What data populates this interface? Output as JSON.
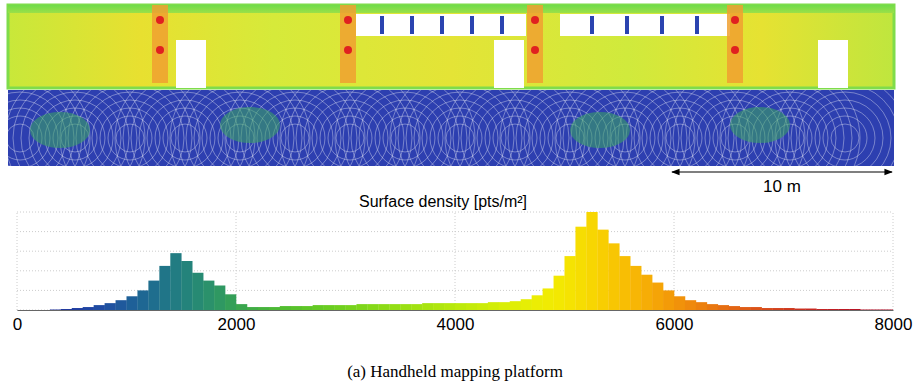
{
  "chart_data": {
    "type": "histogram",
    "title": "Surface density [pts/m²]",
    "caption": "(a) Handheld mapping platform",
    "annotations": [
      "10 m"
    ],
    "bins": [
      0,
      100,
      200,
      300,
      400,
      500,
      600,
      700,
      800,
      900,
      1000,
      1100,
      1200,
      1300,
      1400,
      1500,
      1600,
      1700,
      1800,
      1900,
      2000,
      2100,
      2200,
      2300,
      2400,
      2500,
      2600,
      2700,
      2800,
      2900,
      3000,
      3100,
      3200,
      3300,
      3400,
      3500,
      3600,
      3700,
      3800,
      3900,
      4000,
      4100,
      4200,
      4300,
      4400,
      4500,
      4600,
      4700,
      4800,
      4900,
      5000,
      5100,
      5200,
      5300,
      5400,
      5500,
      5600,
      5700,
      5800,
      5900,
      6000,
      6100,
      6200,
      6300,
      6400,
      6500,
      6600,
      6700,
      6800,
      6900,
      7000,
      7100,
      7200,
      7300,
      7400,
      7500,
      7600,
      7700,
      7800,
      7900,
      8000
    ],
    "values": [
      0,
      0,
      0,
      0.5,
      1,
      2,
      3,
      5,
      7,
      10,
      14,
      20,
      30,
      45,
      58,
      50,
      38,
      30,
      25,
      16,
      6,
      3,
      3,
      3,
      4,
      4,
      4,
      5,
      5,
      5,
      5,
      6,
      6,
      6,
      6,
      6,
      6,
      7,
      7,
      7,
      7,
      7,
      7,
      8,
      8,
      9,
      11,
      15,
      22,
      35,
      55,
      85,
      100,
      82,
      68,
      55,
      45,
      36,
      28,
      20,
      14,
      10,
      8,
      6,
      5,
      4,
      3,
      3,
      2,
      2,
      2,
      1.5,
      1.5,
      1,
      1,
      1,
      1,
      0.5,
      0.5,
      0.5
    ],
    "colors": [
      "#1b1f8a",
      "#1c2590",
      "#1d2b95",
      "#1e319a",
      "#1e379d",
      "#1f3da0",
      "#1f44a2",
      "#1f4ba2",
      "#1f52a0",
      "#1f599c",
      "#1e6098",
      "#1e6793",
      "#1f6e8e",
      "#207588",
      "#227c82",
      "#24837b",
      "#278a73",
      "#2b916b",
      "#2f9862",
      "#349f58",
      "#3aa64e",
      "#40ad45",
      "#46b33d",
      "#4cb936",
      "#52be30",
      "#58c22b",
      "#5ec627",
      "#64ca24",
      "#6acd21",
      "#70d01f",
      "#77d31d",
      "#7ed61b",
      "#85d919",
      "#8cdb17",
      "#93de15",
      "#9ae013",
      "#a1e211",
      "#a8e40f",
      "#afe60e",
      "#b6e80c",
      "#bdea0b",
      "#c4eb0a",
      "#cbec09",
      "#d2ed08",
      "#d9ee07",
      "#e0ee06",
      "#e6ee05",
      "#eced04",
      "#f0eb03",
      "#f3e802",
      "#f5e302",
      "#f6dd02",
      "#f7d602",
      "#f8ce02",
      "#f8c603",
      "#f8be04",
      "#f7b605",
      "#f6ad06",
      "#f5a407",
      "#f39b08",
      "#f1920a",
      "#ef890c",
      "#ec800e",
      "#e97710",
      "#e66e12",
      "#e36514",
      "#df5c16",
      "#db5318",
      "#d74a1a",
      "#d3411c",
      "#cf381d",
      "#cb301e",
      "#c7281f",
      "#c32020",
      "#bf1a20",
      "#bb1520",
      "#b71020",
      "#b30c20",
      "#af0820",
      "#ab0520"
    ],
    "xlim": [
      0,
      8000
    ],
    "xticks": [
      0,
      2000,
      4000,
      6000,
      8000
    ],
    "ylim": [
      0,
      100
    ],
    "yticks": [
      0,
      20,
      40,
      60,
      80,
      100
    ],
    "grid": true,
    "tick_labels": "x"
  }
}
